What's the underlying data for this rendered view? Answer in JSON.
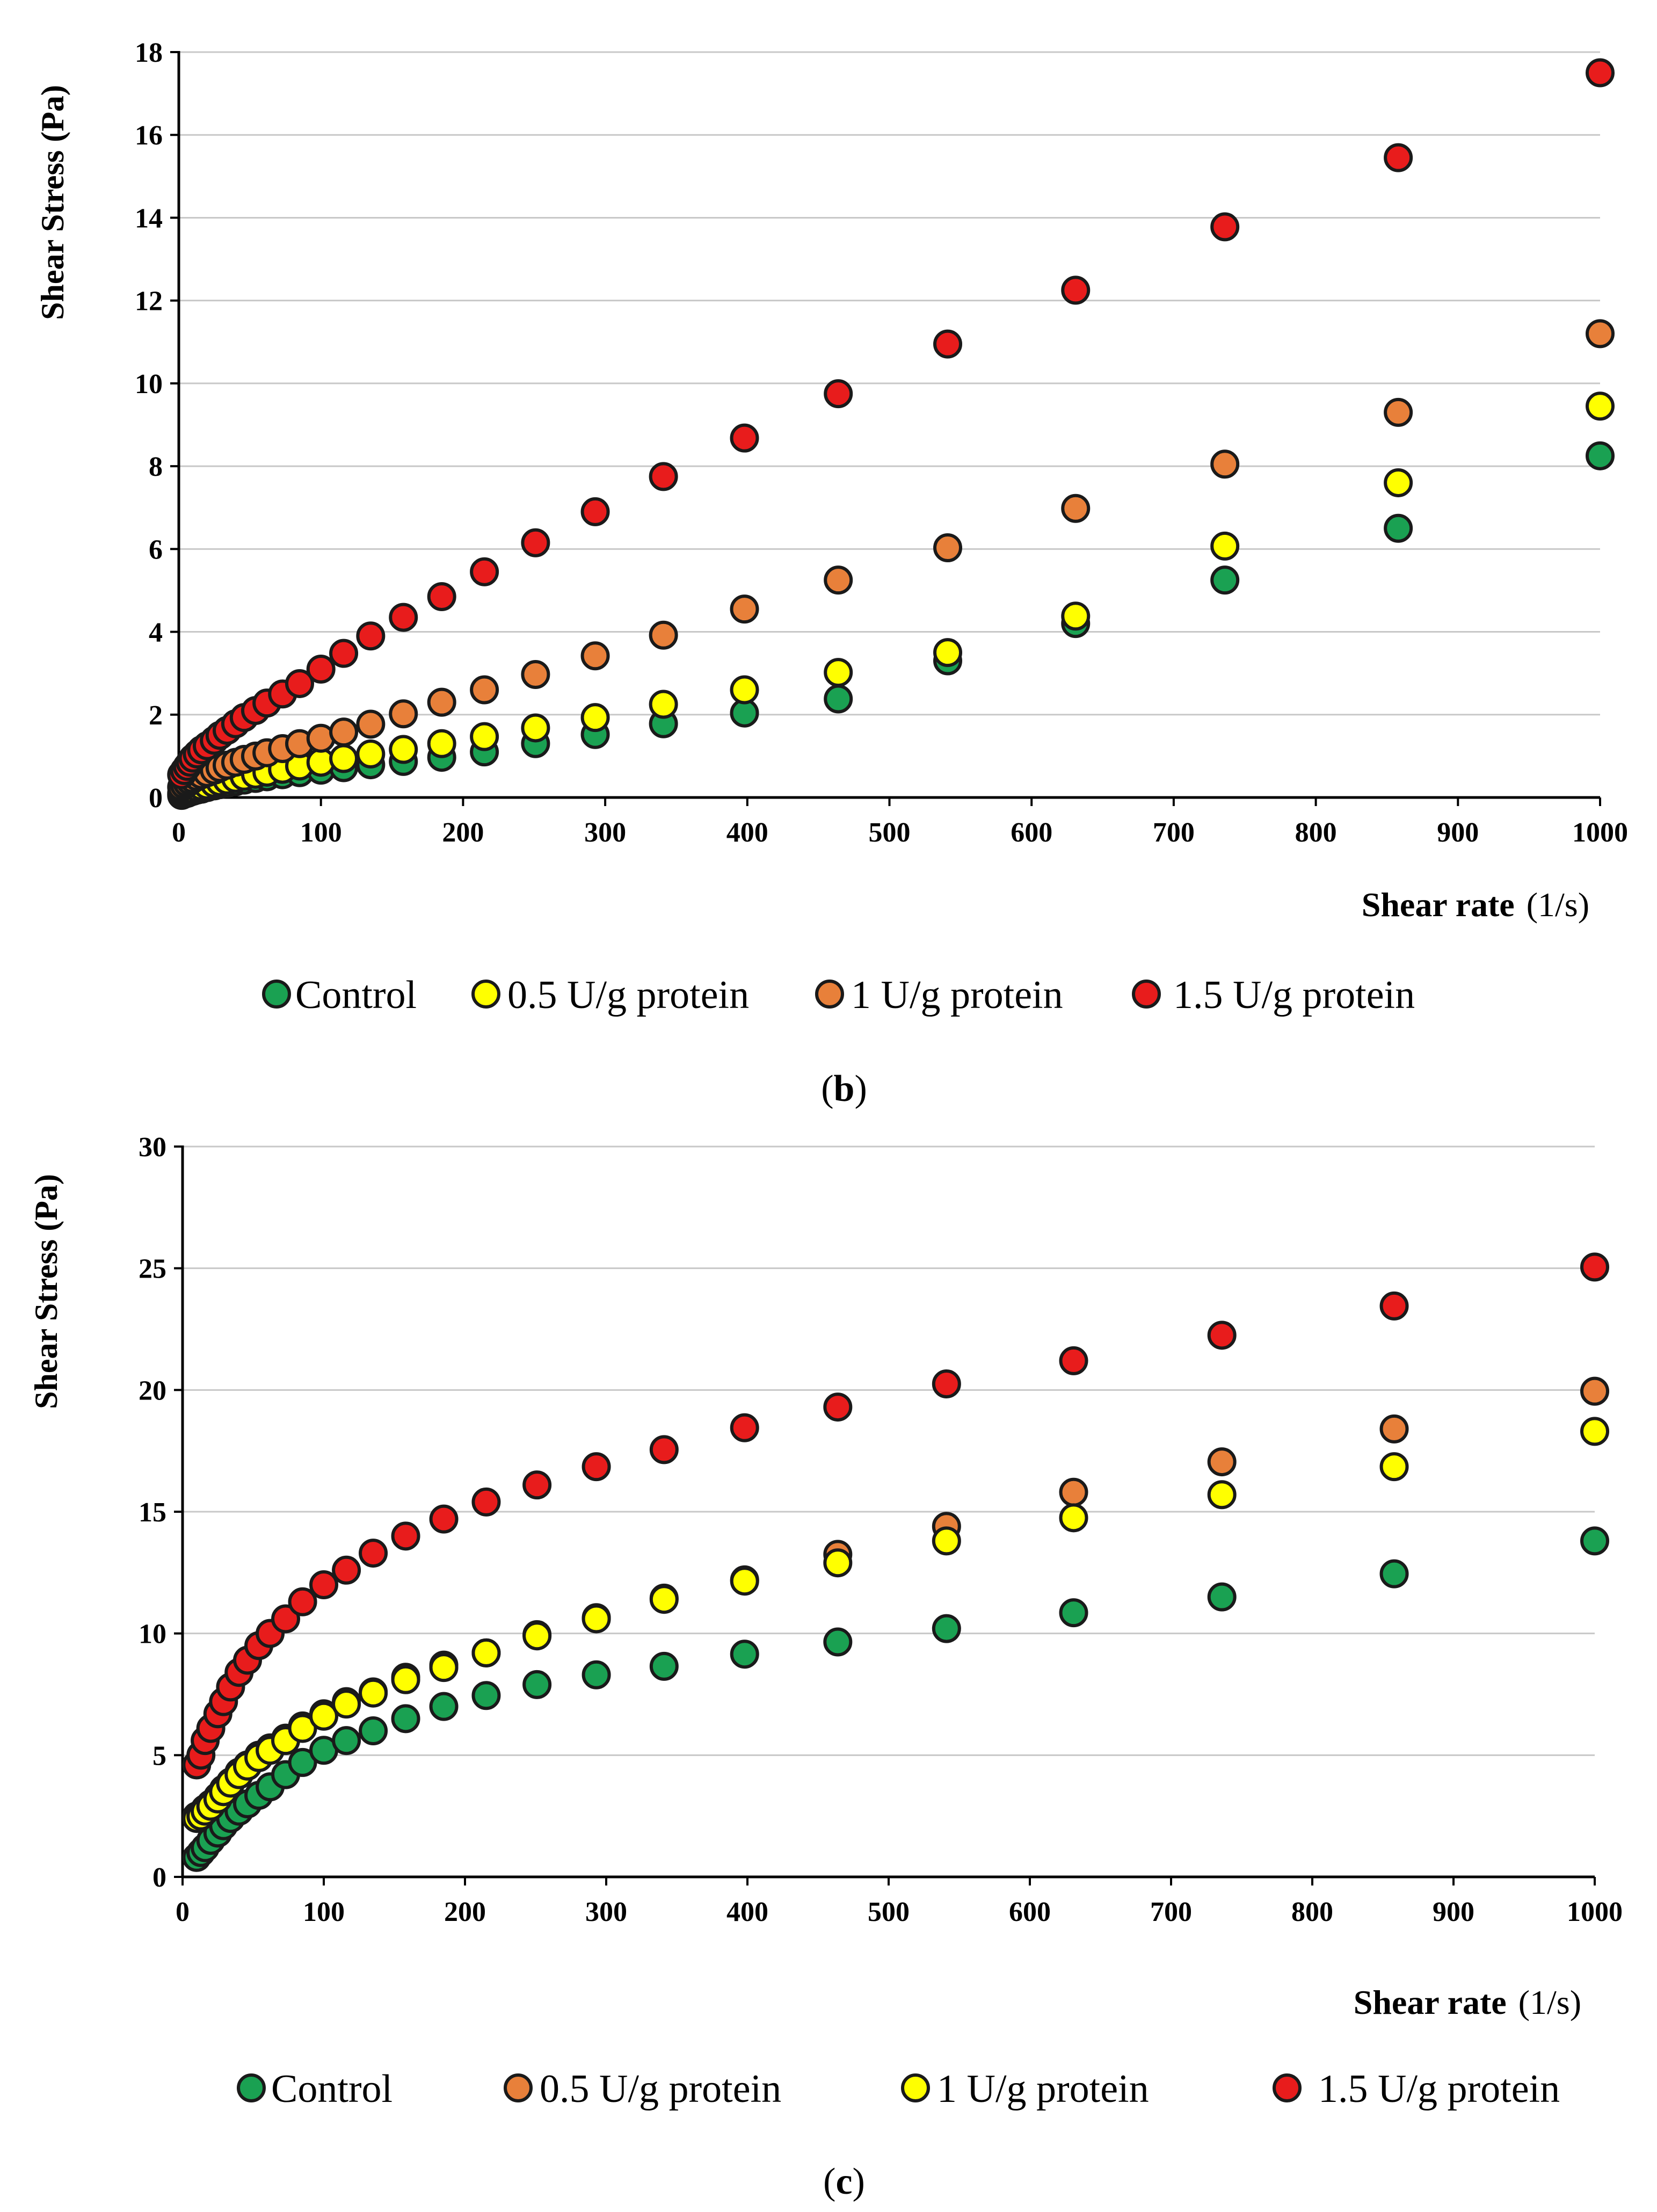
{
  "chart_data": [
    {
      "type": "scatter",
      "panel": "b",
      "caption_pre": "(",
      "caption_letter": "b",
      "caption_post": ")",
      "ylabel": "Shear Stress (Pa)",
      "xlabel_bold": "Shear rate",
      "xlabel_unit": "(1/s)",
      "xlim": [
        0,
        1000
      ],
      "ylim": [
        0,
        18
      ],
      "xticks": [
        0,
        100,
        200,
        300,
        400,
        500,
        600,
        700,
        800,
        900,
        1000
      ],
      "yticks": [
        0,
        2,
        4,
        6,
        8,
        10,
        12,
        14,
        16,
        18
      ],
      "grid": true,
      "legend_position": "bottom",
      "x": [
        2,
        4,
        6,
        8,
        10,
        13,
        16,
        20,
        25,
        29,
        34,
        40,
        46,
        54,
        62,
        73,
        85,
        100,
        116,
        135,
        158,
        185,
        215,
        251,
        293,
        341,
        398,
        464,
        541,
        631,
        736,
        858,
        1000
      ],
      "series": [
        {
          "name": "Control",
          "color": "#1aa152",
          "values": [
            0.05,
            0.08,
            0.1,
            0.13,
            0.15,
            0.18,
            0.2,
            0.24,
            0.28,
            0.31,
            0.34,
            0.38,
            0.42,
            0.46,
            0.5,
            0.55,
            0.6,
            0.66,
            0.72,
            0.79,
            0.87,
            0.97,
            1.1,
            1.3,
            1.52,
            1.78,
            2.04,
            2.38,
            3.3,
            4.2,
            5.25,
            6.5,
            8.25
          ]
        },
        {
          "name": "0.5 U/g protein",
          "color": "#ffff00",
          "values": [
            0.1,
            0.12,
            0.15,
            0.18,
            0.2,
            0.24,
            0.27,
            0.3,
            0.34,
            0.38,
            0.42,
            0.46,
            0.51,
            0.56,
            0.61,
            0.68,
            0.76,
            0.85,
            0.94,
            1.05,
            1.16,
            1.3,
            1.47,
            1.68,
            1.93,
            2.25,
            2.6,
            3.02,
            3.5,
            4.38,
            6.07,
            7.6,
            9.45
          ]
        },
        {
          "name": "1 U/g protein",
          "color": "#e8803a",
          "values": [
            0.25,
            0.3,
            0.35,
            0.4,
            0.45,
            0.5,
            0.55,
            0.6,
            0.66,
            0.72,
            0.78,
            0.85,
            0.92,
            1.0,
            1.08,
            1.18,
            1.3,
            1.43,
            1.58,
            1.77,
            2.02,
            2.3,
            2.6,
            2.97,
            3.42,
            3.92,
            4.55,
            5.25,
            6.03,
            6.98,
            8.05,
            9.3,
            11.2
          ]
        },
        {
          "name": "1.5 U/g protein",
          "color": "#e81c1c",
          "values": [
            0.55,
            0.65,
            0.75,
            0.85,
            0.95,
            1.05,
            1.15,
            1.25,
            1.38,
            1.5,
            1.62,
            1.78,
            1.93,
            2.1,
            2.28,
            2.5,
            2.75,
            3.1,
            3.48,
            3.9,
            4.35,
            4.85,
            5.45,
            6.15,
            6.9,
            7.75,
            8.68,
            9.75,
            10.95,
            12.25,
            13.78,
            15.45,
            17.5
          ]
        }
      ]
    },
    {
      "type": "scatter",
      "panel": "c",
      "caption_pre": "(",
      "caption_letter": "c",
      "caption_post": ")",
      "ylabel": "Shear Stress (Pa)",
      "xlabel_bold": "Shear rate",
      "xlabel_unit": "(1/s)",
      "xlim": [
        0,
        1000
      ],
      "ylim": [
        0,
        30
      ],
      "xticks": [
        0,
        100,
        200,
        300,
        400,
        500,
        600,
        700,
        800,
        900,
        1000
      ],
      "yticks": [
        0,
        5,
        10,
        15,
        20,
        25,
        30
      ],
      "grid": true,
      "legend_position": "bottom",
      "x": [
        10,
        13,
        16,
        20,
        25,
        29,
        34,
        40,
        46,
        54,
        62,
        73,
        85,
        100,
        116,
        135,
        158,
        185,
        215,
        251,
        293,
        341,
        398,
        464,
        541,
        631,
        736,
        858,
        1000
      ],
      "series": [
        {
          "name": "Control",
          "color": "#1aa152",
          "values": [
            0.8,
            1.0,
            1.2,
            1.5,
            1.8,
            2.1,
            2.4,
            2.7,
            3.0,
            3.35,
            3.7,
            4.2,
            4.7,
            5.2,
            5.6,
            6.0,
            6.5,
            7.0,
            7.45,
            7.9,
            8.3,
            8.65,
            9.15,
            9.65,
            10.2,
            10.85,
            11.5,
            12.45,
            13.8
          ]
        },
        {
          "name": "0.5 U/g protein",
          "color": "#e8803a",
          "values": [
            2.5,
            2.6,
            2.8,
            3.0,
            3.3,
            3.6,
            3.9,
            4.3,
            4.6,
            5.0,
            5.3,
            5.7,
            6.2,
            6.7,
            7.2,
            7.6,
            8.2,
            8.7,
            9.2,
            9.95,
            10.65,
            11.45,
            12.2,
            13.25,
            14.4,
            15.8,
            17.05,
            18.4,
            19.95
          ]
        },
        {
          "name": "1 U/g protein",
          "color": "#ffff00",
          "values": [
            2.4,
            2.5,
            2.7,
            2.9,
            3.2,
            3.5,
            3.85,
            4.2,
            4.55,
            4.9,
            5.2,
            5.6,
            6.1,
            6.6,
            7.1,
            7.55,
            8.1,
            8.6,
            9.2,
            9.9,
            10.6,
            11.4,
            12.15,
            12.9,
            13.8,
            14.75,
            15.7,
            16.85,
            18.3
          ]
        },
        {
          "name": "1.5 U/g protein",
          "color": "#e81c1c",
          "values": [
            4.6,
            5.0,
            5.6,
            6.1,
            6.7,
            7.2,
            7.8,
            8.4,
            8.9,
            9.5,
            10.0,
            10.6,
            11.3,
            12.0,
            12.6,
            13.3,
            14.0,
            14.7,
            15.4,
            16.1,
            16.85,
            17.55,
            18.45,
            19.3,
            20.25,
            21.2,
            22.25,
            23.45,
            25.05
          ]
        }
      ]
    }
  ]
}
